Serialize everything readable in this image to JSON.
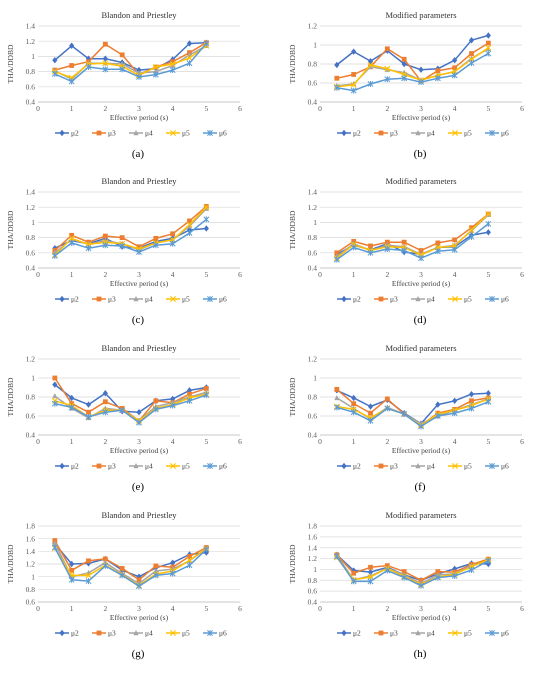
{
  "series_names": [
    "μ2",
    "μ3",
    "μ4",
    "μ5",
    "μ6"
  ],
  "series_colors": [
    "#4472C4",
    "#ED7D31",
    "#A5A5A5",
    "#FFC000",
    "#5B9BD5"
  ],
  "series_markers": [
    "diamond",
    "square",
    "triangle",
    "x",
    "asterisk"
  ],
  "xlabel": "Effective period (s)",
  "ylabel": "THA/DDBD",
  "chart_data": [
    {
      "type": "line",
      "panel_label": "(a)",
      "title": "Blandon and Priestley",
      "xlabel": "Effective period (s)",
      "ylabel": "THA/DDBD",
      "xlim": [
        0,
        6
      ],
      "ylim": [
        0.4,
        1.4
      ],
      "xticks": [
        "0",
        "1",
        "2",
        "3",
        "4",
        "5",
        "6"
      ],
      "yticks": [
        "0.4",
        "0.6",
        "0.8",
        "1",
        "1.2",
        "1.4"
      ],
      "x": [
        0.5,
        1,
        1.5,
        2,
        2.5,
        3,
        3.5,
        4,
        4.5,
        5
      ],
      "series": [
        {
          "name": "μ2",
          "values": [
            0.95,
            1.14,
            0.97,
            0.97,
            0.92,
            0.82,
            0.84,
            0.96,
            1.17,
            1.18
          ]
        },
        {
          "name": "μ3",
          "values": [
            0.82,
            0.88,
            0.93,
            1.16,
            1.02,
            0.76,
            0.86,
            0.93,
            1.05,
            1.18
          ]
        },
        {
          "name": "μ4",
          "values": [
            0.81,
            0.7,
            0.91,
            0.91,
            0.9,
            0.78,
            0.8,
            0.88,
            1.02,
            1.14
          ]
        },
        {
          "name": "μ5",
          "values": [
            0.8,
            0.72,
            0.9,
            0.91,
            0.87,
            0.75,
            0.86,
            0.9,
            0.98,
            1.14
          ]
        },
        {
          "name": "μ6",
          "values": [
            0.77,
            0.67,
            0.86,
            0.83,
            0.83,
            0.73,
            0.76,
            0.82,
            0.91,
            1.17
          ]
        }
      ]
    },
    {
      "type": "line",
      "panel_label": "(b)",
      "title": "Modified parameters",
      "xlabel": "Effective period (s)",
      "ylabel": "THA/DDBD",
      "xlim": [
        0,
        6
      ],
      "ylim": [
        0.4,
        1.2
      ],
      "xticks": [
        "0",
        "1",
        "2",
        "3",
        "4",
        "5",
        "6"
      ],
      "yticks": [
        "0.4",
        "0.6",
        "0.8",
        "1",
        "1.2"
      ],
      "x": [
        0.5,
        1,
        1.5,
        2,
        2.5,
        3,
        3.5,
        4,
        4.5,
        5
      ],
      "series": [
        {
          "name": "μ2",
          "values": [
            0.79,
            0.93,
            0.83,
            0.94,
            0.8,
            0.74,
            0.75,
            0.84,
            1.05,
            1.1
          ]
        },
        {
          "name": "μ3",
          "values": [
            0.65,
            0.69,
            0.77,
            0.96,
            0.85,
            0.62,
            0.73,
            0.76,
            0.91,
            1.02
          ]
        },
        {
          "name": "μ4",
          "values": [
            0.57,
            0.59,
            0.77,
            0.74,
            0.71,
            0.63,
            0.68,
            0.72,
            0.86,
            0.96
          ]
        },
        {
          "name": "μ5",
          "values": [
            0.56,
            0.58,
            0.79,
            0.75,
            0.69,
            0.63,
            0.68,
            0.72,
            0.85,
            0.97
          ]
        },
        {
          "name": "μ6",
          "values": [
            0.55,
            0.52,
            0.59,
            0.64,
            0.65,
            0.61,
            0.65,
            0.68,
            0.81,
            0.91
          ]
        }
      ]
    },
    {
      "type": "line",
      "panel_label": "(c)",
      "title": "Blandon and Priestley",
      "xlabel": "Effective period (s)",
      "ylabel": "THA/DDBD",
      "xlim": [
        0,
        6
      ],
      "ylim": [
        0.4,
        1.4
      ],
      "xticks": [
        "0",
        "1",
        "2",
        "3",
        "4",
        "5",
        "6"
      ],
      "yticks": [
        "0.4",
        "0.6",
        "0.8",
        "1",
        "1.2",
        "1.4"
      ],
      "x": [
        0.5,
        1,
        1.5,
        2,
        2.5,
        3,
        3.5,
        4,
        4.5,
        5
      ],
      "series": [
        {
          "name": "μ2",
          "values": [
            0.66,
            0.76,
            0.72,
            0.79,
            0.68,
            0.66,
            0.75,
            0.79,
            0.9,
            0.92
          ]
        },
        {
          "name": "μ3",
          "values": [
            0.63,
            0.83,
            0.74,
            0.82,
            0.8,
            0.68,
            0.79,
            0.85,
            1.02,
            1.21
          ]
        },
        {
          "name": "μ4",
          "values": [
            0.6,
            0.78,
            0.71,
            0.76,
            0.72,
            0.64,
            0.73,
            0.77,
            0.95,
            1.18
          ]
        },
        {
          "name": "μ5",
          "values": [
            0.57,
            0.79,
            0.71,
            0.74,
            0.72,
            0.65,
            0.73,
            0.77,
            0.97,
            1.2
          ]
        },
        {
          "name": "μ6",
          "values": [
            0.56,
            0.73,
            0.66,
            0.7,
            0.69,
            0.61,
            0.7,
            0.72,
            0.86,
            1.04
          ]
        }
      ]
    },
    {
      "type": "line",
      "panel_label": "(d)",
      "title": "Modified parameters",
      "xlabel": "Effective period (s)",
      "ylabel": "THA/DDBD",
      "xlim": [
        0,
        6
      ],
      "ylim": [
        0.4,
        1.4
      ],
      "xticks": [
        "0",
        "1",
        "2",
        "3",
        "4",
        "5",
        "6"
      ],
      "yticks": [
        "0.4",
        "0.6",
        "0.8",
        "1",
        "1.2",
        "1.4"
      ],
      "x": [
        0.5,
        1,
        1.5,
        2,
        2.5,
        3,
        3.5,
        4,
        4.5,
        5
      ],
      "series": [
        {
          "name": "μ2",
          "values": [
            0.58,
            0.7,
            0.64,
            0.72,
            0.61,
            0.58,
            0.67,
            0.68,
            0.83,
            0.87
          ]
        },
        {
          "name": "μ3",
          "values": [
            0.6,
            0.75,
            0.69,
            0.74,
            0.74,
            0.63,
            0.73,
            0.77,
            0.93,
            1.11
          ]
        },
        {
          "name": "μ4",
          "values": [
            0.55,
            0.72,
            0.63,
            0.7,
            0.68,
            0.58,
            0.67,
            0.7,
            0.89,
            1.1
          ]
        },
        {
          "name": "μ5",
          "values": [
            0.53,
            0.71,
            0.63,
            0.68,
            0.67,
            0.57,
            0.67,
            0.69,
            0.9,
            1.11
          ]
        },
        {
          "name": "μ6",
          "values": [
            0.51,
            0.67,
            0.6,
            0.65,
            0.63,
            0.53,
            0.62,
            0.64,
            0.81,
            0.98
          ]
        }
      ]
    },
    {
      "type": "line",
      "panel_label": "(e)",
      "title": "Blandon and Priestley",
      "xlabel": "Effective period (s)",
      "ylabel": "THA/DDBD",
      "xlim": [
        0,
        6
      ],
      "ylim": [
        0.4,
        1.2
      ],
      "xticks": [
        "0",
        "1",
        "2",
        "3",
        "4",
        "5",
        "6"
      ],
      "yticks": [
        "0.4",
        "0.6",
        "0.8",
        "1",
        "1.2"
      ],
      "x": [
        0.5,
        1,
        1.5,
        2,
        2.5,
        3,
        3.5,
        4,
        4.5,
        5
      ],
      "series": [
        {
          "name": "μ2",
          "values": [
            0.93,
            0.79,
            0.72,
            0.84,
            0.65,
            0.64,
            0.76,
            0.78,
            0.87,
            0.9
          ]
        },
        {
          "name": "μ3",
          "values": [
            1.0,
            0.73,
            0.64,
            0.75,
            0.68,
            0.55,
            0.76,
            0.74,
            0.83,
            0.89
          ]
        },
        {
          "name": "μ4",
          "values": [
            0.81,
            0.68,
            0.58,
            0.68,
            0.66,
            0.55,
            0.7,
            0.74,
            0.8,
            0.85
          ]
        },
        {
          "name": "μ5",
          "values": [
            0.76,
            0.71,
            0.59,
            0.66,
            0.66,
            0.55,
            0.68,
            0.72,
            0.79,
            0.83
          ]
        },
        {
          "name": "μ6",
          "values": [
            0.73,
            0.69,
            0.59,
            0.64,
            0.66,
            0.53,
            0.67,
            0.71,
            0.76,
            0.82
          ]
        }
      ]
    },
    {
      "type": "line",
      "panel_label": "(f)",
      "title": "Modified parameters",
      "xlabel": "Effective period (s)",
      "ylabel": "THA/DDBD",
      "xlim": [
        0,
        6
      ],
      "ylim": [
        0.4,
        1.2
      ],
      "xticks": [
        "0",
        "1",
        "2",
        "3",
        "4",
        "5",
        "6"
      ],
      "yticks": [
        "0.4",
        "0.6",
        "0.8",
        "1",
        "1.2"
      ],
      "x": [
        0.5,
        1,
        1.5,
        2,
        2.5,
        3,
        3.5,
        4,
        4.5,
        5
      ],
      "series": [
        {
          "name": "μ2",
          "values": [
            0.87,
            0.79,
            0.7,
            0.77,
            0.63,
            0.52,
            0.72,
            0.76,
            0.83,
            0.84
          ]
        },
        {
          "name": "μ3",
          "values": [
            0.88,
            0.73,
            0.63,
            0.78,
            0.62,
            0.5,
            0.63,
            0.67,
            0.76,
            0.79
          ]
        },
        {
          "name": "μ4",
          "values": [
            0.79,
            0.68,
            0.57,
            0.69,
            0.62,
            0.52,
            0.6,
            0.66,
            0.72,
            0.78
          ]
        },
        {
          "name": "μ5",
          "values": [
            0.7,
            0.67,
            0.58,
            0.68,
            0.62,
            0.5,
            0.62,
            0.66,
            0.71,
            0.78
          ]
        },
        {
          "name": "μ6",
          "values": [
            0.69,
            0.64,
            0.55,
            0.68,
            0.62,
            0.49,
            0.6,
            0.63,
            0.68,
            0.75
          ]
        }
      ]
    },
    {
      "type": "line",
      "panel_label": "(g)",
      "title": "Blandon  and Priestley",
      "xlabel": "Effective period (s)",
      "ylabel": "THA/DDBD",
      "xlim": [
        0,
        6
      ],
      "ylim": [
        0.6,
        1.8
      ],
      "xticks": [
        "0",
        "1",
        "2",
        "3",
        "4",
        "5",
        "6"
      ],
      "yticks": [
        "0.6",
        "0.8",
        "1",
        "1.2",
        "1.4",
        "1.6",
        "1.8"
      ],
      "x": [
        0.5,
        1,
        1.5,
        2,
        2.5,
        3,
        3.5,
        4,
        4.5,
        5
      ],
      "series": [
        {
          "name": "μ2",
          "values": [
            1.52,
            1.2,
            1.21,
            1.28,
            1.1,
            1.0,
            1.14,
            1.22,
            1.35,
            1.38
          ]
        },
        {
          "name": "μ3",
          "values": [
            1.57,
            1.1,
            1.25,
            1.28,
            1.13,
            0.95,
            1.17,
            1.15,
            1.32,
            1.46
          ]
        },
        {
          "name": "μ4",
          "values": [
            1.53,
            1.0,
            1.06,
            1.22,
            1.05,
            0.89,
            1.09,
            1.12,
            1.25,
            1.44
          ]
        },
        {
          "name": "μ5",
          "values": [
            1.45,
            1.02,
            1.02,
            1.18,
            1.03,
            0.86,
            1.04,
            1.09,
            1.26,
            1.44
          ]
        },
        {
          "name": "μ6",
          "values": [
            1.46,
            0.95,
            0.93,
            1.17,
            1.02,
            0.85,
            1.02,
            1.05,
            1.18,
            1.43
          ]
        }
      ]
    },
    {
      "type": "line",
      "panel_label": "(h)",
      "title": "Modified parameters",
      "xlabel": "Effective period (s)",
      "ylabel": "THA/DDBD",
      "xlim": [
        0,
        6
      ],
      "ylim": [
        0.4,
        1.8
      ],
      "xticks": [
        "0",
        "1",
        "2",
        "3",
        "4",
        "5",
        "6"
      ],
      "yticks": [
        "0.4",
        "0.6",
        "0.8",
        "1",
        "1.2",
        "1.4",
        "1.6",
        "1.8"
      ],
      "x": [
        0.5,
        1,
        1.5,
        2,
        2.5,
        3,
        3.5,
        4,
        4.5,
        5
      ],
      "series": [
        {
          "name": "μ2",
          "values": [
            1.27,
            0.98,
            0.95,
            1.04,
            0.9,
            0.8,
            0.92,
            1.01,
            1.11,
            1.1
          ]
        },
        {
          "name": "μ3",
          "values": [
            1.27,
            0.93,
            1.04,
            1.07,
            0.96,
            0.8,
            0.96,
            0.95,
            1.09,
            1.19
          ]
        },
        {
          "name": "μ4",
          "values": [
            1.26,
            0.81,
            0.88,
            1.02,
            0.9,
            0.74,
            0.9,
            0.92,
            1.07,
            1.16
          ]
        },
        {
          "name": "μ5",
          "values": [
            1.22,
            0.81,
            0.86,
            1.02,
            0.87,
            0.72,
            0.86,
            0.91,
            1.05,
            1.18
          ]
        },
        {
          "name": "μ6",
          "values": [
            1.24,
            0.78,
            0.78,
            0.98,
            0.85,
            0.7,
            0.85,
            0.88,
            0.99,
            1.16
          ]
        }
      ]
    }
  ]
}
